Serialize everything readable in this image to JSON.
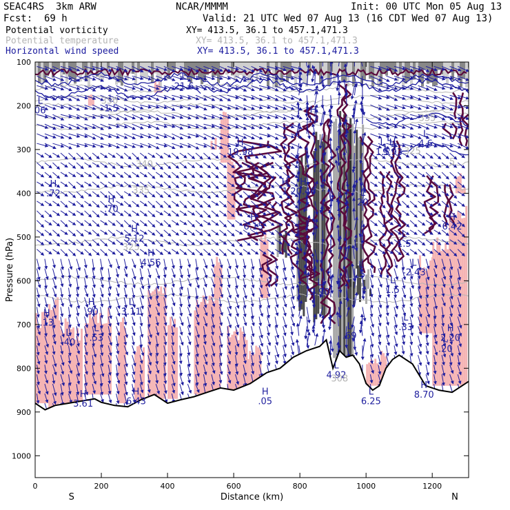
{
  "header": {
    "model": "SEAC4RS  3km ARW",
    "center": "NCAR/MMMM",
    "init": "Init: 00 UTC Mon 05 Aug 13",
    "fcst_label": "Fcst:",
    "fcst_value": "69 h",
    "valid": "Valid: 21 UTC Wed 07 Aug 13 (16 CDT Wed 07 Aug 13)"
  },
  "fields": [
    {
      "name": "Potential vorticity",
      "xy": "XY= 413.5, 36.1 to 457.1,471.3",
      "color": "#000000"
    },
    {
      "name": "Potential temperature",
      "xy": "XY= 413.5, 36.1 to 457.1,471.3",
      "color": "#b4b4b4"
    },
    {
      "name": "Horizontal wind speed",
      "xy": "XY= 413.5, 36.1 to 457.1,471.3",
      "color": "#1a1a9e"
    }
  ],
  "colors": {
    "wind": "#1e1e9e",
    "pv": "#5a0a3c",
    "theta": "#b4b4b4",
    "shade": "#f5b4b4",
    "terrain": "#000000"
  },
  "chart_data": {
    "type": "cross-section",
    "xlabel": "Distance (km)",
    "ylabel": "Pressure (hPa)",
    "xlim": [
      0,
      1310
    ],
    "ylim": [
      1050,
      100
    ],
    "x_ticks": [
      0,
      200,
      400,
      600,
      800,
      1000,
      1200
    ],
    "y_ticks": [
      100,
      200,
      300,
      400,
      500,
      600,
      700,
      800,
      900,
      1000
    ],
    "end_labels": {
      "left": "S",
      "right": "N"
    },
    "terrain_surface_hPa": {
      "x": [
        0,
        30,
        60,
        100,
        140,
        180,
        200,
        240,
        280,
        320,
        360,
        400,
        440,
        480,
        520,
        560,
        600,
        650,
        700,
        740,
        780,
        820,
        860,
        880,
        900,
        920,
        940,
        960,
        980,
        1000,
        1020,
        1040,
        1060,
        1080,
        1100,
        1140,
        1180,
        1220,
        1260,
        1310
      ],
      "p": [
        880,
        895,
        885,
        880,
        875,
        870,
        878,
        885,
        888,
        872,
        860,
        880,
        872,
        865,
        855,
        845,
        850,
        835,
        810,
        800,
        775,
        760,
        750,
        735,
        800,
        760,
        775,
        770,
        790,
        835,
        850,
        840,
        800,
        780,
        770,
        790,
        840,
        850,
        855,
        830
      ]
    },
    "theta_labels": [
      {
        "x": 225,
        "p": 195,
        "text": "350"
      },
      {
        "x": 330,
        "p": 340,
        "text": "340"
      },
      {
        "x": 320,
        "p": 400,
        "text": "335"
      },
      {
        "x": 290,
        "p": 530,
        "text": "325"
      },
      {
        "x": 920,
        "p": 830,
        "text": "308"
      },
      {
        "x": 1185,
        "p": 235,
        "text": "335"
      },
      {
        "x": 1140,
        "p": 310,
        "text": "325"
      },
      {
        "x": 1260,
        "p": 335,
        "text": "5"
      }
    ],
    "extrema": [
      {
        "kind": "H",
        "x": 55,
        "p": 395,
        "value": ".72"
      },
      {
        "kind": "H",
        "x": 230,
        "p": 430,
        "value": ".70"
      },
      {
        "kind": "H",
        "x": 300,
        "p": 498,
        "value": "5.12"
      },
      {
        "kind": "H",
        "x": 350,
        "p": 553,
        "value": "4.56"
      },
      {
        "kind": "H",
        "x": 660,
        "p": 470,
        "value": "6.15"
      },
      {
        "kind": "H",
        "x": 620,
        "p": 300,
        "value": "19.98"
      },
      {
        "kind": "H",
        "x": 755,
        "p": 390,
        "value": "1"
      },
      {
        "kind": "H",
        "x": 840,
        "p": 225,
        "value": "12"
      },
      {
        "kind": "H",
        "x": 810,
        "p": 390,
        "value": "20.46"
      },
      {
        "kind": "H",
        "x": 1080,
        "p": 300,
        "value": "9.93"
      },
      {
        "kind": "H",
        "x": 170,
        "p": 665,
        "value": ".90"
      },
      {
        "kind": "H",
        "x": 35,
        "p": 690,
        "value": ".13"
      },
      {
        "kind": "H",
        "x": 145,
        "p": 875,
        "value": "3.61"
      },
      {
        "kind": "H",
        "x": 305,
        "p": 870,
        "value": "6.43"
      },
      {
        "kind": "H",
        "x": 695,
        "p": 870,
        "value": ".05"
      },
      {
        "kind": "H",
        "x": 1260,
        "p": 470,
        "value": "6.42"
      },
      {
        "kind": "H",
        "x": 1255,
        "p": 725,
        "value": "2.20"
      },
      {
        "kind": "H",
        "x": 1175,
        "p": 855,
        "value": "8.70"
      },
      {
        "kind": "L",
        "x": 290,
        "p": 665,
        "value": "3.11"
      },
      {
        "kind": "L",
        "x": 100,
        "p": 735,
        "value": ".40"
      },
      {
        "kind": "L",
        "x": 185,
        "p": 725,
        "value": ".53"
      },
      {
        "kind": "L",
        "x": 990,
        "p": 415,
        "value": "20"
      },
      {
        "kind": "L",
        "x": 1145,
        "p": 575,
        "value": "-2.43"
      },
      {
        "kind": "L",
        "x": 1120,
        "p": 700,
        "value": ".33"
      },
      {
        "kind": "L",
        "x": 1015,
        "p": 870,
        "value": "6.25"
      },
      {
        "kind": "L",
        "x": 1240,
        "p": 750,
        "value": ".20"
      },
      {
        "kind": "L",
        "x": 950,
        "p": 720,
        "value": ".69"
      },
      {
        "kind": "L",
        "x": 910,
        "p": 810,
        "value": "4.92"
      },
      {
        "kind": "L",
        "x": 985,
        "p": 580,
        "value": ".5"
      },
      {
        "kind": "L",
        "x": 1080,
        "p": 615,
        "value": "1.5"
      },
      {
        "kind": "L",
        "x": 1115,
        "p": 510,
        "value": "1.5"
      },
      {
        "kind": "L",
        "x": 860,
        "p": 620,
        "value": "9.90"
      },
      {
        "kind": "L",
        "x": 450,
        "p": 150,
        "value": "21.6"
      },
      {
        "kind": "L",
        "x": 230,
        "p": 200,
        "value": "1.5"
      },
      {
        "kind": "L",
        "x": 15,
        "p": 205,
        "value": "06"
      },
      {
        "kind": "L",
        "x": 1180,
        "p": 280,
        "value": "4.6"
      },
      {
        "kind": "L",
        "x": 1050,
        "p": 300,
        "value": "1.5"
      },
      {
        "kind": "L",
        "x": 1070,
        "p": 290,
        "value": "1.5"
      }
    ]
  }
}
